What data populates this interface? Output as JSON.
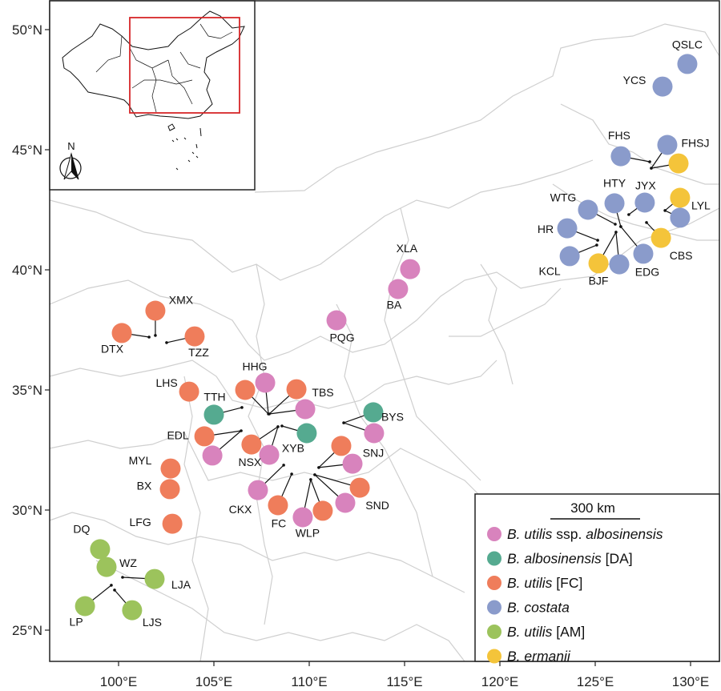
{
  "map": {
    "projection": "lon-lat",
    "xlim": [
      96.4,
      131.5
    ],
    "ylim": [
      23.7,
      51.2
    ],
    "x_ticks": [
      {
        "value": 100,
        "label": "100°E"
      },
      {
        "value": 105,
        "label": "105°E"
      },
      {
        "value": 110,
        "label": "110°E"
      },
      {
        "value": 115,
        "label": "115°E"
      },
      {
        "value": 120,
        "label": "120°E"
      },
      {
        "value": 125,
        "label": "125°E"
      },
      {
        "value": 130,
        "label": "130°E"
      }
    ],
    "y_ticks": [
      {
        "value": 25,
        "label": "25°N"
      },
      {
        "value": 30,
        "label": "30°N"
      },
      {
        "value": 35,
        "label": "35°N"
      },
      {
        "value": 40,
        "label": "40°N"
      },
      {
        "value": 45,
        "label": "45°N"
      },
      {
        "value": 50,
        "label": "50°N"
      }
    ]
  },
  "inset": {
    "north_label": "N",
    "highlight_color": "#d62728"
  },
  "scale_bar": {
    "label": "300 km"
  },
  "species": {
    "ssp": {
      "color": "#d883bd",
      "parts": [
        {
          "t": "B. utilis",
          "i": true
        },
        {
          "t": " ssp. ",
          "i": false
        },
        {
          "t": "albosinensis",
          "i": true
        }
      ]
    },
    "da": {
      "color": "#55aa90",
      "parts": [
        {
          "t": "B. albosinensis",
          "i": true
        },
        {
          "t": " [DA]",
          "i": false
        }
      ]
    },
    "fc": {
      "color": "#ef7d5b",
      "parts": [
        {
          "t": "B. utilis",
          "i": true
        },
        {
          "t": " [FC]",
          "i": false
        }
      ]
    },
    "cos": {
      "color": "#8a9bcb",
      "parts": [
        {
          "t": "B. costata",
          "i": true
        }
      ]
    },
    "am": {
      "color": "#9cc35c",
      "parts": [
        {
          "t": "B. utilis",
          "i": true
        },
        {
          "t": " [AM]",
          "i": false
        }
      ]
    },
    "erm": {
      "color": "#f4c43a",
      "parts": [
        {
          "t": "B. ermanii",
          "i": true
        }
      ]
    }
  },
  "legend_order": [
    "ssp",
    "da",
    "fc",
    "cos",
    "am",
    "erm"
  ],
  "sites": [
    {
      "label": "QSLC",
      "points": [
        {
          "lon": 129.83,
          "lat": 48.57,
          "sp": "cos"
        }
      ]
    },
    {
      "label": "YCS",
      "points": [
        {
          "lon": 128.53,
          "lat": 47.63,
          "sp": "cos"
        }
      ]
    },
    {
      "label": "FHS",
      "site": {
        "lon": 127.86,
        "lat": 44.5
      },
      "points": [
        {
          "lon": 126.34,
          "lat": 44.73,
          "sp": "cos"
        }
      ]
    },
    {
      "label": "FHSJ",
      "site": {
        "lon": 127.94,
        "lat": 44.23
      },
      "points": [
        {
          "lon": 128.78,
          "lat": 45.2,
          "sp": "cos"
        },
        {
          "lon": 129.37,
          "lat": 44.43,
          "sp": "erm"
        }
      ]
    },
    {
      "label": "HTY",
      "site": {
        "lon": 126.34,
        "lat": 41.8
      },
      "points": [
        {
          "lon": 126.01,
          "lat": 42.77,
          "sp": "cos"
        }
      ]
    },
    {
      "label": "JYX",
      "site": {
        "lon": 126.76,
        "lat": 42.3
      },
      "points": [
        {
          "lon": 127.6,
          "lat": 42.8,
          "sp": "cos"
        }
      ]
    },
    {
      "label": "WTG",
      "site": {
        "lon": 126.05,
        "lat": 41.9
      },
      "points": [
        {
          "lon": 124.62,
          "lat": 42.5,
          "sp": "cos"
        }
      ]
    },
    {
      "label": "LYL",
      "site": {
        "lon": 128.66,
        "lat": 42.47
      },
      "points": [
        {
          "lon": 129.45,
          "lat": 43.0,
          "sp": "erm"
        },
        {
          "lon": 129.45,
          "lat": 42.17,
          "sp": "cos"
        }
      ]
    },
    {
      "label": "HR",
      "site": {
        "lon": 125.13,
        "lat": 41.23
      },
      "points": [
        {
          "lon": 123.53,
          "lat": 41.73,
          "sp": "cos"
        }
      ]
    },
    {
      "label": "KCL",
      "site": {
        "lon": 125.08,
        "lat": 41.03
      },
      "points": [
        {
          "lon": 123.66,
          "lat": 40.57,
          "sp": "cos"
        }
      ]
    },
    {
      "label": "BJF",
      "site": {
        "lon": 126.09,
        "lat": 41.57
      },
      "points": [
        {
          "lon": 125.17,
          "lat": 40.27,
          "sp": "erm"
        },
        {
          "lon": 126.26,
          "lat": 40.23,
          "sp": "cos"
        }
      ]
    },
    {
      "label": "EDG",
      "site": {
        "lon": 126.34,
        "lat": 41.8
      },
      "points": [
        {
          "lon": 127.52,
          "lat": 40.67,
          "sp": "cos"
        }
      ]
    },
    {
      "label": "CBS",
      "site": {
        "lon": 127.69,
        "lat": 41.97
      },
      "points": [
        {
          "lon": 128.45,
          "lat": 41.33,
          "sp": "erm"
        }
      ]
    },
    {
      "label": "XLA",
      "points": [
        {
          "lon": 115.29,
          "lat": 40.03,
          "sp": "ssp"
        }
      ]
    },
    {
      "label": "BA",
      "points": [
        {
          "lon": 114.66,
          "lat": 39.2,
          "sp": "ssp"
        }
      ]
    },
    {
      "label": "PQG",
      "points": [
        {
          "lon": 111.43,
          "lat": 37.9,
          "sp": "ssp"
        }
      ]
    },
    {
      "label": "XMX",
      "site": {
        "lon": 101.93,
        "lat": 37.27
      },
      "points": [
        {
          "lon": 101.93,
          "lat": 38.3,
          "sp": "fc"
        }
      ]
    },
    {
      "label": "DTX",
      "site": {
        "lon": 101.6,
        "lat": 37.2
      },
      "points": [
        {
          "lon": 100.17,
          "lat": 37.37,
          "sp": "fc"
        }
      ]
    },
    {
      "label": "TZZ",
      "site": {
        "lon": 102.52,
        "lat": 36.97
      },
      "points": [
        {
          "lon": 103.99,
          "lat": 37.23,
          "sp": "fc"
        }
      ]
    },
    {
      "label": "LHS",
      "points": [
        {
          "lon": 103.7,
          "lat": 34.93,
          "sp": "fc"
        }
      ]
    },
    {
      "label": "TTH",
      "site": {
        "lon": 106.47,
        "lat": 34.27
      },
      "points": [
        {
          "lon": 105.0,
          "lat": 33.97,
          "sp": "da"
        }
      ]
    },
    {
      "label": "HHG",
      "site": {
        "lon": 107.86,
        "lat": 34.0
      },
      "points": [
        {
          "lon": 107.69,
          "lat": 35.3,
          "sp": "ssp"
        },
        {
          "lon": 106.64,
          "lat": 35.0,
          "sp": "fc"
        }
      ]
    },
    {
      "label": "TBS",
      "site": {
        "lon": 107.9,
        "lat": 34.0
      },
      "points": [
        {
          "lon": 109.33,
          "lat": 35.03,
          "sp": "fc"
        },
        {
          "lon": 109.79,
          "lat": 34.2,
          "sp": "ssp"
        }
      ]
    },
    {
      "label": "EDL",
      "site": {
        "lon": 106.43,
        "lat": 33.3
      },
      "points": [
        {
          "lon": 104.5,
          "lat": 33.07,
          "sp": "fc"
        },
        {
          "lon": 104.92,
          "lat": 32.27,
          "sp": "ssp"
        }
      ]
    },
    {
      "label": "NSX",
      "site": {
        "lon": 108.36,
        "lat": 33.47
      },
      "points": [
        {
          "lon": 106.97,
          "lat": 32.73,
          "sp": "fc"
        },
        {
          "lon": 107.9,
          "lat": 32.3,
          "sp": "ssp"
        }
      ]
    },
    {
      "label": "XYB",
      "site": {
        "lon": 108.57,
        "lat": 33.5
      },
      "points": [
        {
          "lon": 109.87,
          "lat": 33.2,
          "sp": "da"
        }
      ]
    },
    {
      "label": "BYS",
      "site": {
        "lon": 111.81,
        "lat": 33.63
      },
      "points": [
        {
          "lon": 113.36,
          "lat": 34.07,
          "sp": "da"
        },
        {
          "lon": 113.4,
          "lat": 33.2,
          "sp": "ssp"
        }
      ]
    },
    {
      "label": "SNJ",
      "site": {
        "lon": 110.5,
        "lat": 31.77
      },
      "points": [
        {
          "lon": 111.68,
          "lat": 32.67,
          "sp": "fc"
        },
        {
          "lon": 112.27,
          "lat": 31.93,
          "sp": "ssp"
        }
      ]
    },
    {
      "label": "SND",
      "site": {
        "lon": 110.29,
        "lat": 31.47
      },
      "points": [
        {
          "lon": 112.65,
          "lat": 30.93,
          "sp": "fc"
        },
        {
          "lon": 111.89,
          "lat": 30.3,
          "sp": "ssp"
        }
      ]
    },
    {
      "label": "WLP",
      "site": {
        "lon": 110.08,
        "lat": 31.27
      },
      "points": [
        {
          "lon": 110.71,
          "lat": 29.97,
          "sp": "fc"
        },
        {
          "lon": 109.66,
          "lat": 29.7,
          "sp": "ssp"
        }
      ]
    },
    {
      "label": "FC",
      "site": {
        "lon": 109.08,
        "lat": 31.5
      },
      "points": [
        {
          "lon": 108.36,
          "lat": 30.2,
          "sp": "fc"
        }
      ]
    },
    {
      "label": "CKX",
      "site": {
        "lon": 108.66,
        "lat": 31.87
      },
      "points": [
        {
          "lon": 107.31,
          "lat": 30.83,
          "sp": "ssp"
        }
      ]
    },
    {
      "label": "MYL",
      "points": [
        {
          "lon": 102.73,
          "lat": 31.73,
          "sp": "fc"
        }
      ]
    },
    {
      "label": "BX",
      "points": [
        {
          "lon": 102.69,
          "lat": 30.87,
          "sp": "fc"
        }
      ]
    },
    {
      "label": "LFG",
      "points": [
        {
          "lon": 102.82,
          "lat": 29.43,
          "sp": "fc"
        }
      ]
    },
    {
      "label": "DQ",
      "points": [
        {
          "lon": 99.03,
          "lat": 28.37,
          "sp": "am"
        }
      ]
    },
    {
      "label": "WZ",
      "points": [
        {
          "lon": 99.37,
          "lat": 27.63,
          "sp": "am"
        }
      ]
    },
    {
      "label": "LJA",
      "site": {
        "lon": 100.21,
        "lat": 27.2
      },
      "points": [
        {
          "lon": 101.89,
          "lat": 27.13,
          "sp": "am"
        }
      ]
    },
    {
      "label": "LP",
      "site": {
        "lon": 99.62,
        "lat": 26.87
      },
      "points": [
        {
          "lon": 98.24,
          "lat": 26.0,
          "sp": "am"
        }
      ]
    },
    {
      "label": "LJS",
      "site": {
        "lon": 99.79,
        "lat": 26.67
      },
      "points": [
        {
          "lon": 100.71,
          "lat": 25.83,
          "sp": "am"
        }
      ]
    }
  ]
}
